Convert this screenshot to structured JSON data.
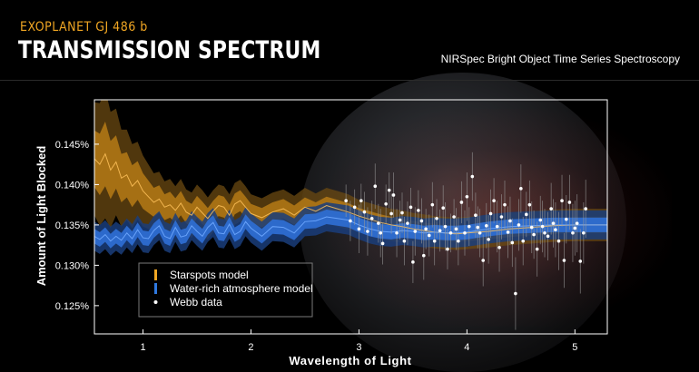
{
  "header": {
    "subtitle": "EXOPLANET GJ 486 b",
    "title": "TRANSMISSION SPECTRUM",
    "instrument": "NIRSpec Bright Object Time Series Spectroscopy"
  },
  "colors": {
    "starspots": "#f0a623",
    "water": "#2f79e0",
    "data": "#ffffff",
    "axis": "#ffffff"
  },
  "chart_data": {
    "type": "line",
    "xlabel": "Wavelength of Light",
    "ylabel": "Amount of Light Blocked",
    "xlim": [
      0.55,
      5.3
    ],
    "ylim": [
      0.1215,
      0.1505
    ],
    "x_ticks": [
      1,
      2,
      3,
      4,
      5
    ],
    "x_tick_labels": [
      "1",
      "2",
      "3",
      "4",
      "5"
    ],
    "y_ticks": [
      0.125,
      0.13,
      0.135,
      0.14,
      0.145
    ],
    "y_tick_labels": [
      "0.125%",
      "0.130%",
      "0.135%",
      "0.140%",
      "0.145%"
    ],
    "legend_position": "bottom-left",
    "series": [
      {
        "name": "Starspots model",
        "x": [
          0.55,
          0.6,
          0.65,
          0.7,
          0.75,
          0.8,
          0.85,
          0.9,
          0.95,
          1.0,
          1.05,
          1.1,
          1.15,
          1.2,
          1.25,
          1.3,
          1.35,
          1.4,
          1.45,
          1.5,
          1.55,
          1.6,
          1.65,
          1.7,
          1.75,
          1.8,
          1.85,
          1.9,
          1.95,
          2.0,
          2.1,
          2.2,
          2.3,
          2.4,
          2.5,
          2.6,
          2.7,
          2.8,
          2.9,
          3.0,
          3.1,
          3.2,
          3.3,
          3.4,
          3.5,
          3.6,
          3.7,
          3.8,
          3.9,
          4.0,
          4.2,
          4.4,
          4.6,
          4.8,
          5.0,
          5.2,
          5.3
        ],
        "y": [
          0.1432,
          0.1425,
          0.1438,
          0.1418,
          0.1428,
          0.1408,
          0.1412,
          0.1398,
          0.1405,
          0.1392,
          0.1385,
          0.1378,
          0.1382,
          0.1372,
          0.1375,
          0.1368,
          0.1377,
          0.1366,
          0.1362,
          0.1372,
          0.1365,
          0.1358,
          0.1367,
          0.1374,
          0.1372,
          0.1362,
          0.1376,
          0.138,
          0.1372,
          0.1364,
          0.1359,
          0.1366,
          0.137,
          0.1362,
          0.1372,
          0.1367,
          0.1374,
          0.137,
          0.1366,
          0.1361,
          0.1357,
          0.1353,
          0.135,
          0.1348,
          0.1345,
          0.1343,
          0.1341,
          0.134,
          0.1339,
          0.134,
          0.1342,
          0.1345,
          0.1347,
          0.1349,
          0.135,
          0.135,
          0.135
        ],
        "band": [
          0.0035,
          0.0038,
          0.004,
          0.0036,
          0.0033,
          0.003,
          0.0028,
          0.0026,
          0.0024,
          0.0022,
          0.002,
          0.0018,
          0.0017,
          0.0016,
          0.0016,
          0.0015,
          0.0015,
          0.0014,
          0.0014,
          0.0014,
          0.0014,
          0.0013,
          0.0013,
          0.0013,
          0.0013,
          0.0013,
          0.0013,
          0.0013,
          0.0013,
          0.0012,
          0.0012,
          0.0012,
          0.0012,
          0.0012,
          0.0012,
          0.0011,
          0.0011,
          0.0011,
          0.0011,
          0.001,
          0.001,
          0.001,
          0.001,
          0.001,
          0.001,
          0.001,
          0.001,
          0.001,
          0.001,
          0.001,
          0.001,
          0.001,
          0.001,
          0.001,
          0.001,
          0.001,
          0.001
        ]
      },
      {
        "name": "Water-rich atmosphere model",
        "x": [
          0.55,
          0.6,
          0.65,
          0.7,
          0.75,
          0.8,
          0.85,
          0.9,
          0.95,
          1.0,
          1.05,
          1.1,
          1.15,
          1.2,
          1.25,
          1.3,
          1.35,
          1.4,
          1.45,
          1.5,
          1.55,
          1.6,
          1.65,
          1.7,
          1.75,
          1.8,
          1.85,
          1.9,
          1.95,
          2.0,
          2.1,
          2.2,
          2.3,
          2.4,
          2.5,
          2.6,
          2.7,
          2.8,
          2.9,
          3.0,
          3.1,
          3.2,
          3.3,
          3.4,
          3.5,
          3.6,
          3.7,
          3.8,
          3.9,
          4.0,
          4.2,
          4.4,
          4.6,
          4.8,
          5.0,
          5.2,
          5.3
        ],
        "y": [
          0.1336,
          0.1332,
          0.1338,
          0.133,
          0.1336,
          0.1331,
          0.134,
          0.1333,
          0.1344,
          0.1334,
          0.1333,
          0.1343,
          0.1349,
          0.1336,
          0.1333,
          0.1347,
          0.1335,
          0.1337,
          0.1349,
          0.1342,
          0.1336,
          0.1347,
          0.1353,
          0.134,
          0.1339,
          0.1351,
          0.1338,
          0.1342,
          0.1354,
          0.1346,
          0.1336,
          0.1348,
          0.1347,
          0.134,
          0.1354,
          0.1355,
          0.136,
          0.1358,
          0.1356,
          0.135,
          0.1345,
          0.1342,
          0.1341,
          0.1343,
          0.1342,
          0.134,
          0.1341,
          0.134,
          0.134,
          0.1341,
          0.1345,
          0.1348,
          0.1349,
          0.135,
          0.135,
          0.135,
          0.135
        ],
        "band": [
          0.0009,
          0.0009,
          0.0009,
          0.0009,
          0.0009,
          0.0009,
          0.0009,
          0.0009,
          0.0009,
          0.0009,
          0.0009,
          0.0009,
          0.0009,
          0.0009,
          0.0009,
          0.0009,
          0.0009,
          0.0009,
          0.0009,
          0.0009,
          0.0009,
          0.0009,
          0.0009,
          0.0009,
          0.0009,
          0.0009,
          0.0009,
          0.0009,
          0.0009,
          0.0009,
          0.0009,
          0.0009,
          0.0009,
          0.0009,
          0.0009,
          0.0009,
          0.0009,
          0.0009,
          0.0009,
          0.0009,
          0.0009,
          0.0009,
          0.0009,
          0.0009,
          0.0009,
          0.0009,
          0.0009,
          0.0009,
          0.0009,
          0.0009,
          0.0009,
          0.0009,
          0.0009,
          0.0009,
          0.0009,
          0.0009,
          0.0009
        ]
      },
      {
        "name": "Webb data",
        "x": [
          2.88,
          2.92,
          2.96,
          3.0,
          3.02,
          3.05,
          3.08,
          3.12,
          3.15,
          3.18,
          3.2,
          3.22,
          3.25,
          3.28,
          3.3,
          3.32,
          3.35,
          3.38,
          3.4,
          3.42,
          3.45,
          3.48,
          3.5,
          3.52,
          3.55,
          3.58,
          3.6,
          3.62,
          3.65,
          3.68,
          3.7,
          3.72,
          3.75,
          3.78,
          3.8,
          3.82,
          3.85,
          3.88,
          3.9,
          3.92,
          3.95,
          3.98,
          4.0,
          4.02,
          4.05,
          4.08,
          4.1,
          4.12,
          4.15,
          4.18,
          4.2,
          4.22,
          4.25,
          4.28,
          4.3,
          4.32,
          4.35,
          4.38,
          4.4,
          4.42,
          4.45,
          4.48,
          4.5,
          4.52,
          4.55,
          4.58,
          4.6,
          4.62,
          4.65,
          4.68,
          4.7,
          4.72,
          4.75,
          4.78,
          4.8,
          4.82,
          4.85,
          4.88,
          4.9,
          4.92,
          4.95,
          4.98,
          5.0,
          5.02,
          5.05,
          5.08,
          5.1
        ],
        "y": [
          0.138,
          0.1355,
          0.1372,
          0.1345,
          0.138,
          0.1366,
          0.1342,
          0.1358,
          0.1398,
          0.1352,
          0.134,
          0.1327,
          0.1376,
          0.1393,
          0.1364,
          0.1387,
          0.134,
          0.1356,
          0.1365,
          0.133,
          0.1352,
          0.1372,
          0.1304,
          0.1342,
          0.1368,
          0.1355,
          0.1312,
          0.1345,
          0.1337,
          0.1375,
          0.133,
          0.1358,
          0.1343,
          0.1371,
          0.1348,
          0.132,
          0.134,
          0.136,
          0.1345,
          0.133,
          0.1378,
          0.134,
          0.1385,
          0.1348,
          0.141,
          0.1362,
          0.1347,
          0.134,
          0.1306,
          0.1349,
          0.1332,
          0.1364,
          0.138,
          0.1348,
          0.1322,
          0.136,
          0.1375,
          0.1341,
          0.1355,
          0.1328,
          0.1265,
          0.135,
          0.1395,
          0.133,
          0.1363,
          0.1375,
          0.1347,
          0.1338,
          0.132,
          0.1356,
          0.1348,
          0.134,
          0.1336,
          0.137,
          0.1352,
          0.1344,
          0.133,
          0.138,
          0.1306,
          0.1357,
          0.1378,
          0.134,
          0.1346,
          0.1352,
          0.1305,
          0.134,
          0.137
        ],
        "err": [
          0.002,
          0.0025,
          0.0022,
          0.003,
          0.0021,
          0.0025,
          0.003,
          0.0022,
          0.0028,
          0.0024,
          0.003,
          0.0026,
          0.0024,
          0.0022,
          0.0025,
          0.0028,
          0.003,
          0.0024,
          0.0025,
          0.003,
          0.0027,
          0.0024,
          0.0026,
          0.003,
          0.0025,
          0.0028,
          0.003,
          0.0025,
          0.0026,
          0.0028,
          0.003,
          0.0024,
          0.0026,
          0.0028,
          0.003,
          0.0025,
          0.0024,
          0.0022,
          0.0026,
          0.003,
          0.0026,
          0.0028,
          0.003,
          0.0024,
          0.003,
          0.0028,
          0.0026,
          0.003,
          0.0032,
          0.0028,
          0.003,
          0.003,
          0.0028,
          0.0032,
          0.003,
          0.0028,
          0.003,
          0.0032,
          0.003,
          0.003,
          0.0045,
          0.0032,
          0.003,
          0.003,
          0.0028,
          0.003,
          0.0032,
          0.003,
          0.0034,
          0.003,
          0.0032,
          0.003,
          0.003,
          0.0032,
          0.003,
          0.0034,
          0.0036,
          0.0032,
          0.0034,
          0.003,
          0.0034,
          0.0036,
          0.0034,
          0.0036,
          0.004,
          0.0038,
          0.0036
        ]
      }
    ],
    "legend": [
      {
        "label": "Starspots model",
        "marker": "line",
        "color": "#f0a623"
      },
      {
        "label": "Water-rich atmosphere model",
        "marker": "line",
        "color": "#2f79e0"
      },
      {
        "label": "Webb data",
        "marker": "dot",
        "color": "#ffffff"
      }
    ]
  }
}
